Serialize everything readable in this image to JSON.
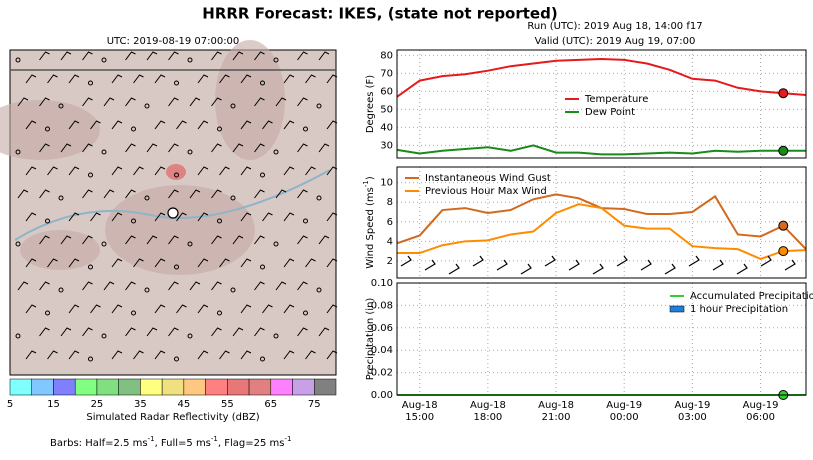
{
  "title": "HRRR Forecast: IKES, (state not reported)",
  "note": [
    "Barbs: Half=2.5 ms",
    "-1",
    ", Full=5 ms",
    "-1",
    ", Flag=25 ms",
    "-1"
  ],
  "time_axis": {
    "x": [
      "Aug-18 14:00",
      "Aug-18 15:00",
      "Aug-18 16:00",
      "Aug-18 17:00",
      "Aug-18 18:00",
      "Aug-18 19:00",
      "Aug-18 20:00",
      "Aug-18 21:00",
      "Aug-18 22:00",
      "Aug-18 23:00",
      "Aug-19 00:00",
      "Aug-19 01:00",
      "Aug-19 02:00",
      "Aug-19 03:00",
      "Aug-19 04:00",
      "Aug-19 05:00",
      "Aug-19 06:00",
      "Aug-19 07:00",
      "Aug-19 08:00"
    ],
    "xlim": [
      "Aug-18 14:00",
      "Aug-19 08:00"
    ],
    "xticks": [
      "Aug-18 15:00",
      "Aug-18 18:00",
      "Aug-18 21:00",
      "Aug-19 00:00",
      "Aug-19 03:00",
      "Aug-19 06:00"
    ],
    "marker_x": "Aug-19 07:00"
  },
  "chart_data": [
    {
      "type": "map",
      "title": "UTC: 2019-08-19 07:00:00"
    },
    {
      "type": "colorbar",
      "xlabel": "Simulated Radar Reflectivity (dBZ)",
      "bins": [
        5,
        10,
        15,
        20,
        25,
        30,
        35,
        40,
        45,
        50,
        55,
        60,
        65,
        70,
        75,
        80
      ],
      "colors": [
        "#80ffff",
        "#80c8ff",
        "#8080ff",
        "#80ff80",
        "#80e080",
        "#80c080",
        "#ffff80",
        "#f0e080",
        "#ffc880",
        "#ff8080",
        "#e87878",
        "#e08080",
        "#ff80ff",
        "#c8a0e8",
        "#808080"
      ],
      "xlim": [
        5,
        80
      ],
      "xticks": [
        5,
        15,
        25,
        35,
        45,
        55,
        65,
        75
      ]
    },
    {
      "type": "line",
      "title": [
        "Run (UTC): 2019 Aug 18, 14:00 f17",
        "Valid (UTC): 2019 Aug 19, 07:00"
      ],
      "ylabel": [
        "Degrees (F)"
      ],
      "ylim": [
        23,
        83
      ],
      "yticks": [
        30,
        40,
        50,
        60,
        70,
        80
      ],
      "grid": true,
      "legend": "center",
      "series": [
        {
          "name": "Temperature",
          "color": "#e41a1c",
          "values": [
            57,
            66,
            68.5,
            69.5,
            71.5,
            74,
            75.5,
            77,
            77.5,
            78,
            77.5,
            75.5,
            72,
            67,
            66,
            62,
            60,
            59,
            58
          ]
        },
        {
          "name": "Dew Point",
          "color": "#1a8a1a",
          "values": [
            27.5,
            25.5,
            27,
            28,
            29,
            27,
            30,
            26,
            26,
            25,
            25,
            25.5,
            26,
            25.5,
            27,
            26.5,
            27,
            27,
            27
          ]
        }
      ]
    },
    {
      "type": "line",
      "ylabel": [
        "Wind Speed (ms",
        "-1",
        ")"
      ],
      "ylim": [
        0.25,
        11.6
      ],
      "yticks": [
        2,
        4,
        6,
        8,
        10
      ],
      "grid": true,
      "legend": "upper left",
      "series": [
        {
          "name": "Instantaneous Wind Gust",
          "color": "#d2691e",
          "values": [
            3.8,
            4.6,
            7.2,
            7.4,
            6.9,
            7.2,
            8.3,
            8.8,
            8.4,
            7.4,
            7.3,
            6.8,
            6.8,
            7.0,
            8.6,
            4.7,
            4.5,
            5.6,
            3.2
          ]
        },
        {
          "name": "Previous Hour Max Wind",
          "color": "#ff8c00",
          "values": [
            2.8,
            2.8,
            3.6,
            4.0,
            4.1,
            4.7,
            5.0,
            6.9,
            7.8,
            7.4,
            5.6,
            5.3,
            5.3,
            3.5,
            3.3,
            3.2,
            2.2,
            3.0,
            3.1
          ]
        }
      ]
    },
    {
      "type": "line",
      "ylabel": [
        "Precipitation (in)"
      ],
      "ylim": [
        0,
        0.1
      ],
      "yticks": [
        {
          "value": 0,
          "label": "0.00"
        },
        {
          "value": 0.02,
          "label": "0.02"
        },
        {
          "value": 0.04,
          "label": "0.04"
        },
        {
          "value": 0.06,
          "label": "0.06"
        },
        {
          "value": 0.08,
          "label": "0.08"
        },
        {
          "value": 0.1,
          "label": "0.10"
        }
      ],
      "grid": true,
      "legend": "upper right",
      "show_xticks": true,
      "series": [
        {
          "name": "Accumulated Precipitation",
          "color": "#32cd32",
          "values": [
            0,
            0,
            0,
            0,
            0,
            0,
            0,
            0,
            0,
            0,
            0,
            0,
            0,
            0,
            0,
            0,
            0,
            0,
            0
          ]
        },
        {
          "name": "1 hour Precipitation",
          "color": "#1e7fd8",
          "bars": true,
          "values": [
            0,
            0,
            0,
            0,
            0,
            0,
            0,
            0,
            0,
            0,
            0,
            0,
            0,
            0,
            0,
            0,
            0,
            0,
            0
          ]
        }
      ]
    }
  ]
}
